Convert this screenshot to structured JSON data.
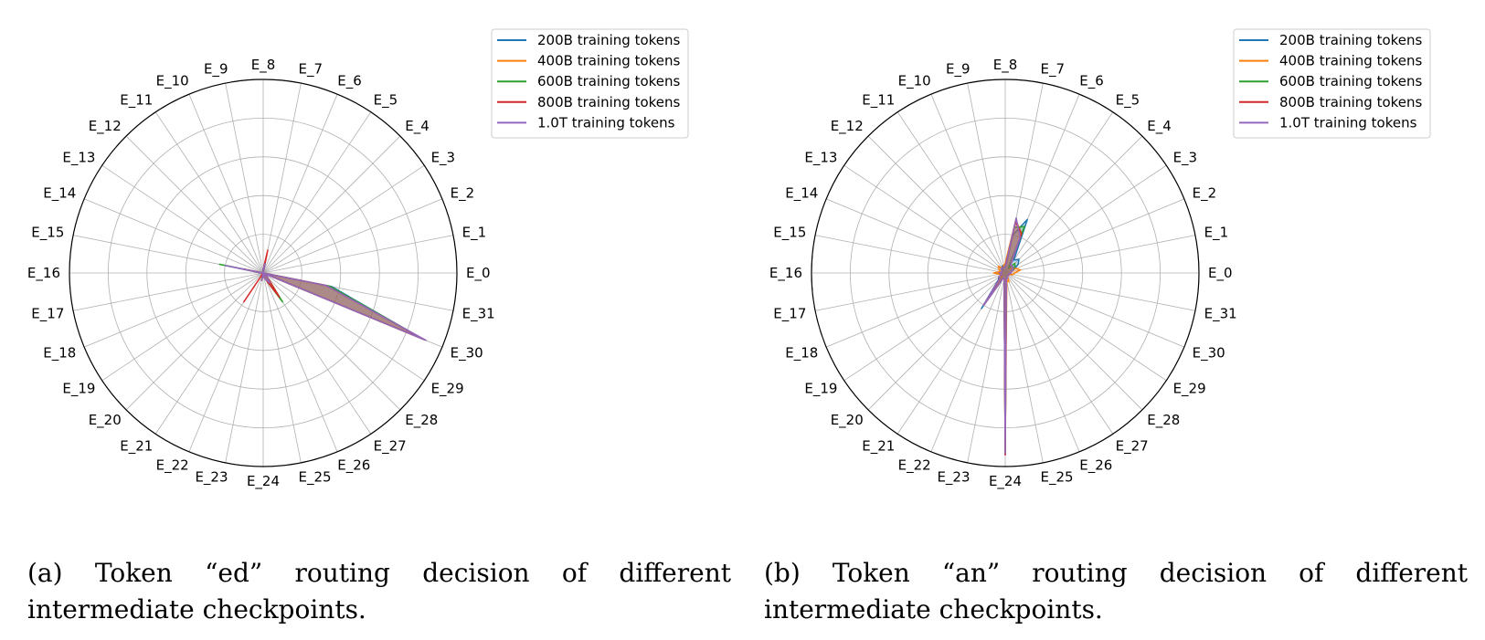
{
  "figures": [
    {
      "caption": "(a) Token “ed” routing decision of different intermediate checkpoints."
    },
    {
      "caption": "(b) Token “an” routing decision of different intermediate checkpoints."
    }
  ],
  "chart_data": [
    {
      "type": "radar",
      "title": "",
      "categories": [
        "E_0",
        "E_1",
        "E_2",
        "E_3",
        "E_4",
        "E_5",
        "E_6",
        "E_7",
        "E_8",
        "E_9",
        "E_10",
        "E_11",
        "E_12",
        "E_13",
        "E_14",
        "E_15",
        "E_16",
        "E_17",
        "E_18",
        "E_19",
        "E_20",
        "E_21",
        "E_22",
        "E_23",
        "E_24",
        "E_25",
        "E_26",
        "E_27",
        "E_28",
        "E_29",
        "E_30",
        "E_31"
      ],
      "rlim": [
        0,
        1.0
      ],
      "grid": true,
      "legend_position": "top-right",
      "series": [
        {
          "name": "200B training tokens",
          "color": "#1f77b4",
          "values": [
            0,
            0,
            0,
            0,
            0,
            0,
            0,
            0.05,
            0.02,
            0,
            0,
            0,
            0,
            0,
            0,
            0.1,
            0.01,
            0,
            0,
            0,
            0,
            0,
            0,
            0.04,
            0,
            0.02,
            0.04,
            0.06,
            0.03,
            0,
            0.89,
            0.36
          ]
        },
        {
          "name": "400B training tokens",
          "color": "#ff7f0e",
          "values": [
            0,
            0,
            0,
            0,
            0,
            0,
            0,
            0.05,
            0.02,
            0,
            0,
            0,
            0,
            0,
            0,
            0.1,
            0.01,
            0,
            0,
            0,
            0,
            0,
            0,
            0.04,
            0,
            0.02,
            0.04,
            0.06,
            0.03,
            0,
            0.9,
            0.34
          ]
        },
        {
          "name": "600B training tokens",
          "color": "#2ca02c",
          "values": [
            0,
            0,
            0,
            0,
            0,
            0,
            0,
            0.05,
            0.02,
            0,
            0,
            0,
            0,
            0,
            0,
            0.23,
            0.01,
            0,
            0,
            0,
            0,
            0,
            0,
            0.04,
            0,
            0.02,
            0.04,
            0.18,
            0.03,
            0,
            0.9,
            0.35
          ]
        },
        {
          "name": "800B training tokens",
          "color": "#d62728",
          "values": [
            0,
            0,
            0,
            0,
            0,
            0,
            0,
            0.12,
            0.02,
            0,
            0,
            0,
            0,
            0,
            0,
            0.1,
            0.01,
            0,
            0,
            0,
            0,
            0.18,
            0,
            0.04,
            0,
            0.02,
            0.04,
            0.15,
            0.03,
            0,
            0.9,
            0.33
          ]
        },
        {
          "name": "1.0T training tokens",
          "color": "#9467bd",
          "values": [
            0,
            0,
            0,
            0,
            0,
            0,
            0,
            0.05,
            0.02,
            0,
            0,
            0,
            0,
            0,
            0,
            0.2,
            0.01,
            0,
            0,
            0,
            0,
            0,
            0,
            0.04,
            0,
            0.02,
            0.04,
            0.06,
            0.03,
            0,
            0.91,
            0.33
          ]
        }
      ]
    },
    {
      "type": "radar",
      "title": "",
      "categories": [
        "E_0",
        "E_1",
        "E_2",
        "E_3",
        "E_4",
        "E_5",
        "E_6",
        "E_7",
        "E_8",
        "E_9",
        "E_10",
        "E_11",
        "E_12",
        "E_13",
        "E_14",
        "E_15",
        "E_16",
        "E_17",
        "E_18",
        "E_19",
        "E_20",
        "E_21",
        "E_22",
        "E_23",
        "E_24",
        "E_25",
        "E_26",
        "E_27",
        "E_28",
        "E_29",
        "E_30",
        "E_31"
      ],
      "rlim": [
        0,
        1.0
      ],
      "grid": true,
      "legend_position": "top-right",
      "series": [
        {
          "name": "200B training tokens",
          "color": "#1f77b4",
          "values": [
            0.03,
            0.03,
            0.05,
            0.08,
            0.1,
            0.08,
            0.3,
            0.2,
            0.03,
            0.04,
            0.04,
            0.03,
            0.02,
            0.02,
            0.02,
            0.02,
            0.03,
            0.03,
            0.02,
            0.04,
            0.05,
            0.22,
            0.03,
            0.03,
            0.94,
            0.03,
            0.03,
            0.02,
            0.02,
            0.02,
            0.02,
            0.02
          ]
        },
        {
          "name": "400B training tokens",
          "color": "#ff7f0e",
          "values": [
            0.05,
            0.08,
            0.06,
            0.04,
            0.03,
            0.04,
            0.22,
            0.28,
            0.05,
            0.04,
            0.03,
            0.03,
            0.05,
            0.04,
            0.03,
            0.03,
            0.06,
            0.03,
            0.02,
            0.02,
            0.03,
            0.18,
            0.03,
            0.03,
            0.92,
            0.04,
            0.05,
            0.02,
            0.02,
            0.02,
            0.02,
            0.04
          ]
        },
        {
          "name": "600B training tokens",
          "color": "#2ca02c",
          "values": [
            0.03,
            0.03,
            0.04,
            0.06,
            0.07,
            0.03,
            0.26,
            0.24,
            0.03,
            0.03,
            0.03,
            0.03,
            0.03,
            0.02,
            0.02,
            0.02,
            0.03,
            0.02,
            0.02,
            0.04,
            0.04,
            0.2,
            0.03,
            0.03,
            0.93,
            0.03,
            0.03,
            0.02,
            0.02,
            0.02,
            0.02,
            0.02
          ]
        },
        {
          "name": "800B training tokens",
          "color": "#d62728",
          "values": [
            0.03,
            0.03,
            0.04,
            0.05,
            0.05,
            0.05,
            0.22,
            0.27,
            0.03,
            0.03,
            0.03,
            0.03,
            0.03,
            0.02,
            0.02,
            0.02,
            0.03,
            0.02,
            0.02,
            0.04,
            0.04,
            0.2,
            0.03,
            0.03,
            0.94,
            0.03,
            0.03,
            0.02,
            0.02,
            0.02,
            0.02,
            0.02
          ]
        },
        {
          "name": "1.0T training tokens",
          "color": "#9467bd",
          "values": [
            0.03,
            0.03,
            0.04,
            0.05,
            0.05,
            0.05,
            0.2,
            0.29,
            0.03,
            0.03,
            0.03,
            0.03,
            0.03,
            0.02,
            0.02,
            0.02,
            0.03,
            0.02,
            0.02,
            0.04,
            0.04,
            0.2,
            0.03,
            0.03,
            0.93,
            0.03,
            0.03,
            0.02,
            0.02,
            0.02,
            0.02,
            0.02
          ]
        }
      ]
    }
  ]
}
